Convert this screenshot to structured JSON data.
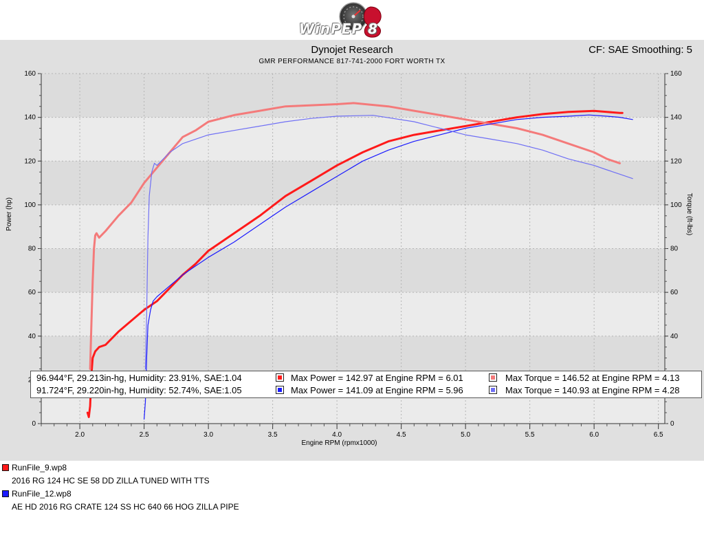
{
  "header": {
    "logo_text": "WinPEP 8",
    "title": "Dynojet Research",
    "subtitle": "GMR PERFORMANCE 817-741-2000  FORT WORTH TX",
    "cf_label": "CF: SAE Smoothing: 5"
  },
  "colors": {
    "run1_power": "#ff1a1a",
    "run1_torque": "#f47a7a",
    "run2_power": "#1a1aff",
    "run2_torque": "#6f6ff5",
    "panel": "#e0e0e0"
  },
  "legend": {
    "rows": [
      {
        "conditions": "96.944°F, 29.213in-hg, Humidity: 23.91%, SAE:1.04",
        "max_power": "Max Power = 142.97 at Engine RPM = 6.01",
        "max_torque": "Max Torque = 146.52 at Engine RPM = 4.13"
      },
      {
        "conditions": "91.724°F, 29.220in-hg, Humidity: 52.74%, SAE:1.05",
        "max_power": "Max Power = 141.09 at Engine RPM = 5.96",
        "max_torque": "Max Torque = 140.93 at Engine RPM = 4.28"
      }
    ]
  },
  "runs": [
    {
      "file": "RunFile_9.wp8",
      "description": "2016 RG 124 HC SE 58 DD ZILLA TUNED WITH TTS"
    },
    {
      "file": "RunFile_12.wp8",
      "description": "AE HD 2016 RG CRATE 124 SS HC 640 66 HOG ZILLA PIPE"
    }
  ],
  "chart_data": {
    "type": "line",
    "xlabel": "Engine RPM (rpmx1000)",
    "ylabel": "Power (hp)",
    "y2label": "Torque (ft-lbs)",
    "xlim": [
      1.7,
      6.55
    ],
    "ylim": [
      0,
      160
    ],
    "y2lim": [
      0,
      160
    ],
    "xticks": [
      "2.0",
      "2.5",
      "3.0",
      "3.5",
      "4.0",
      "4.5",
      "5.0",
      "5.5",
      "6.0",
      "6.5"
    ],
    "yticks": [
      "0",
      "20",
      "40",
      "60",
      "80",
      "100",
      "120",
      "140",
      "160"
    ],
    "grid": true,
    "series": [
      {
        "name": "RunFile_9.wp8 Power",
        "axis": "left",
        "x": [
          2.06,
          2.07,
          2.08,
          2.09,
          2.1,
          2.12,
          2.15,
          2.2,
          2.3,
          2.4,
          2.5,
          2.6,
          2.7,
          2.8,
          2.9,
          3.0,
          3.2,
          3.4,
          3.6,
          3.8,
          4.0,
          4.2,
          4.4,
          4.6,
          4.8,
          5.0,
          5.2,
          5.4,
          5.6,
          5.8,
          6.0,
          6.1,
          6.2,
          6.22
        ],
        "y": [
          5,
          3,
          8,
          22,
          30,
          33,
          35,
          36,
          42,
          47,
          52,
          56,
          62,
          68,
          73,
          79,
          87,
          95,
          104,
          111,
          118,
          124,
          129,
          132,
          134,
          136,
          138,
          140,
          141.5,
          142.5,
          142.97,
          142.5,
          142,
          142
        ]
      },
      {
        "name": "RunFile_9.wp8 Torque",
        "axis": "right",
        "x": [
          2.08,
          2.09,
          2.1,
          2.11,
          2.12,
          2.13,
          2.15,
          2.2,
          2.3,
          2.4,
          2.5,
          2.6,
          2.7,
          2.8,
          2.9,
          3.0,
          3.2,
          3.4,
          3.6,
          3.8,
          4.0,
          4.13,
          4.4,
          4.6,
          4.8,
          5.0,
          5.2,
          5.4,
          5.6,
          5.8,
          6.0,
          6.1,
          6.2
        ],
        "y": [
          25,
          45,
          65,
          80,
          86,
          87,
          85,
          88,
          95,
          101,
          110,
          117,
          124,
          131,
          134,
          138,
          141,
          143,
          145,
          145.5,
          146,
          146.52,
          145,
          143,
          141,
          139,
          137,
          135,
          132,
          128,
          124,
          121,
          119
        ]
      },
      {
        "name": "RunFile_12.wp8 Power",
        "axis": "left",
        "x": [
          2.5,
          2.51,
          2.52,
          2.53,
          2.55,
          2.57,
          2.6,
          2.7,
          2.8,
          2.9,
          3.0,
          3.2,
          3.4,
          3.6,
          3.8,
          4.0,
          4.2,
          4.4,
          4.6,
          4.8,
          5.0,
          5.2,
          5.4,
          5.6,
          5.8,
          5.96,
          6.1,
          6.2,
          6.3
        ],
        "y": [
          2,
          10,
          30,
          45,
          52,
          56,
          58,
          63,
          68,
          72,
          76,
          83,
          91,
          99,
          106,
          113,
          120,
          125,
          129,
          132,
          135,
          137,
          139,
          140,
          140.5,
          141.09,
          140.5,
          140,
          139
        ]
      },
      {
        "name": "RunFile_12.wp8 Torque",
        "axis": "right",
        "x": [
          2.51,
          2.52,
          2.53,
          2.54,
          2.56,
          2.58,
          2.6,
          2.7,
          2.8,
          3.0,
          3.2,
          3.4,
          3.6,
          3.8,
          4.0,
          4.28,
          4.6,
          4.8,
          5.0,
          5.2,
          5.4,
          5.6,
          5.8,
          6.0,
          6.1,
          6.2,
          6.3
        ],
        "y": [
          25,
          50,
          85,
          104,
          115,
          119,
          118,
          124,
          128,
          132,
          134,
          136,
          138,
          139.5,
          140.5,
          140.93,
          138,
          135,
          132,
          130,
          128,
          125,
          121,
          118,
          116,
          114,
          112
        ]
      }
    ]
  }
}
